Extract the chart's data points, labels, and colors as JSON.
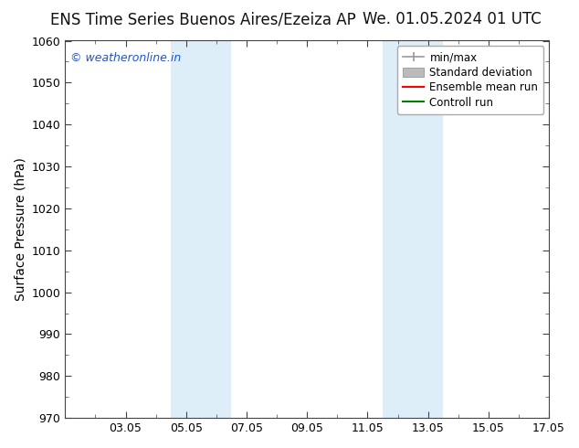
{
  "title_left": "ENS Time Series Buenos Aires/Ezeiza AP",
  "title_right": "We. 01.05.2024 01 UTC",
  "ylabel": "Surface Pressure (hPa)",
  "ylim": [
    970,
    1060
  ],
  "yticks": [
    970,
    980,
    990,
    1000,
    1010,
    1020,
    1030,
    1040,
    1050,
    1060
  ],
  "xlim": [
    0,
    16
  ],
  "xtick_labels": [
    "03.05",
    "05.05",
    "07.05",
    "09.05",
    "11.05",
    "13.05",
    "15.05",
    "17.05"
  ],
  "xtick_positions": [
    2,
    4,
    6,
    8,
    10,
    12,
    14,
    16
  ],
  "shaded_bands": [
    {
      "x_start": 3.5,
      "x_end": 5.5,
      "color": "#deeef8"
    },
    {
      "x_start": 10.5,
      "x_end": 12.5,
      "color": "#deeef8"
    }
  ],
  "watermark": "© weatheronline.in",
  "watermark_color": "#2255cc",
  "legend_entries": [
    {
      "label": "min/max",
      "color": "#999999"
    },
    {
      "label": "Standard deviation",
      "color": "#bbbbbb"
    },
    {
      "label": "Ensemble mean run",
      "color": "red"
    },
    {
      "label": "Controll run",
      "color": "green"
    }
  ],
  "bg_color": "#ffffff",
  "plot_bg_color": "#ffffff",
  "title_fontsize": 12,
  "axis_label_fontsize": 10,
  "tick_fontsize": 9,
  "legend_fontsize": 8.5
}
